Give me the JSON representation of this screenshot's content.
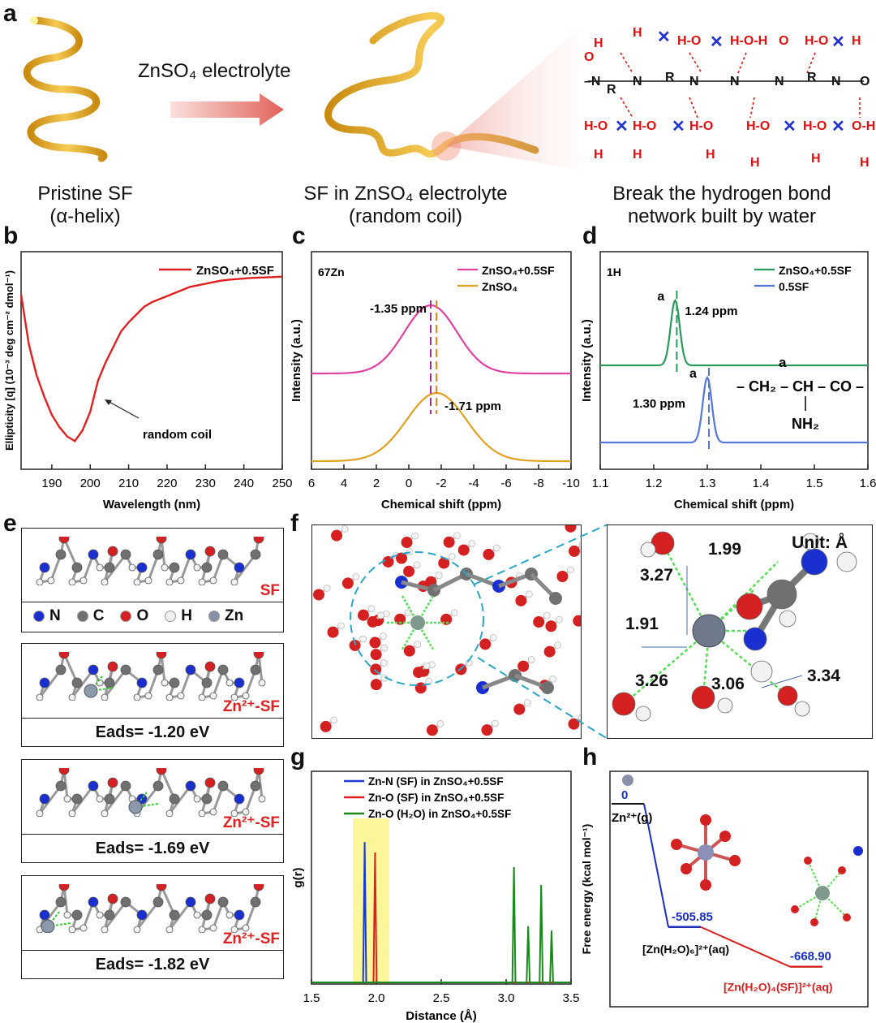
{
  "panel_a": {
    "label": "a",
    "arrow_text": "ZnSO₄ electrolyte",
    "caption1_line1": "Pristine SF",
    "caption1_line2": "(α-helix)",
    "caption2_line1": "SF in ZnSO₄ electrolyte",
    "caption2_line2": "(random coil)",
    "caption3_line1": "Break the hydrogen bond",
    "caption3_line2": "network built by water",
    "colors": {
      "helix": "#f2b531",
      "arrow": "#e8736a",
      "hbond": "#d11",
      "cross": "#2233cc"
    }
  },
  "panel_b": {
    "label": "b",
    "annotation": "random coil",
    "chart_data": {
      "type": "line",
      "xlabel": "Wavelength (nm)",
      "ylabel": "Ellipticity [q] (10⁻³ deg cm⁻² dmol⁻¹)",
      "xlim": [
        182,
        250
      ],
      "xticks": [
        190,
        200,
        210,
        220,
        230,
        240,
        250
      ],
      "series": [
        {
          "name": "ZnSO₄+0.5SF",
          "color": "#e02020",
          "x": [
            182,
            184,
            186,
            188,
            190,
            192,
            194,
            196,
            198,
            200,
            202,
            204,
            206,
            208,
            210,
            212,
            214,
            216,
            218,
            220,
            222,
            224,
            226,
            228,
            230,
            232,
            234,
            236,
            238,
            240,
            242,
            244,
            246,
            248,
            250
          ],
          "y": [
            -0.6,
            -2.2,
            -3.2,
            -3.9,
            -4.5,
            -4.9,
            -5.2,
            -5.35,
            -5.0,
            -4.4,
            -3.4,
            -2.8,
            -2.3,
            -1.8,
            -1.5,
            -1.25,
            -1.0,
            -0.85,
            -0.75,
            -0.65,
            -0.55,
            -0.45,
            -0.35,
            -0.3,
            -0.25,
            -0.2,
            -0.15,
            -0.12,
            -0.1,
            -0.08,
            -0.06,
            -0.05,
            -0.04,
            -0.03,
            -0.02
          ]
        }
      ]
    }
  },
  "panel_c": {
    "label": "c",
    "nucleus": "67Zn",
    "ann1": "-1.35 ppm",
    "ann2": "-1.71 ppm",
    "chart_data": {
      "type": "line",
      "xlabel": "Chemical shift (ppm)",
      "ylabel": "Intensity (a.u.)",
      "xlim": [
        6,
        -10
      ],
      "xticks": [
        6,
        4,
        2,
        0,
        -2,
        -4,
        -6,
        -8,
        -10
      ],
      "series": [
        {
          "name": "ZnSO₄+0.5SF",
          "color": "#e040a0",
          "peak": -1.35,
          "width": 2.3
        },
        {
          "name": "ZnSO₄",
          "color": "#e0a020",
          "peak": -1.71,
          "width": 2.6
        }
      ]
    }
  },
  "panel_d": {
    "label": "d",
    "nucleus": "1H",
    "ann1": "1.24 ppm",
    "ann2": "1.30 ppm",
    "peak_label": "a",
    "formula_left": "– CH₂ – CH – CO –",
    "formula_sub": "NH₂",
    "chart_data": {
      "type": "line",
      "xlabel": "Chemical shift (ppm)",
      "ylabel": "Intensity (a.u.)",
      "xlim": [
        1.1,
        1.6
      ],
      "xticks": [
        1.1,
        1.2,
        1.3,
        1.4,
        1.5,
        1.6
      ],
      "series": [
        {
          "name": "ZnSO₄+0.5SF",
          "color": "#2a9a5a",
          "peak": 1.24
        },
        {
          "name": "0.5SF",
          "color": "#5577dd",
          "peak": 1.3
        }
      ]
    }
  },
  "panel_e": {
    "label": "e",
    "sf_label": "SF",
    "zn_sf_label": "Zn²⁺-SF",
    "legend": [
      {
        "name": "N",
        "color": "#1a2fd0"
      },
      {
        "name": "C",
        "color": "#707070"
      },
      {
        "name": "O",
        "color": "#d42020"
      },
      {
        "name": "H",
        "color": "#f0f0f0"
      },
      {
        "name": "Zn",
        "color": "#8890a8"
      }
    ],
    "eads": [
      "Eads= -1.20 eV",
      "Eads= -1.69 eV",
      "Eads= -1.82 eV"
    ]
  },
  "panel_f": {
    "label": "f",
    "unit": "Unit: Å",
    "distances": [
      "1.99",
      "3.27",
      "1.91",
      "3.26",
      "3.06",
      "3.34"
    ]
  },
  "panel_g": {
    "label": "g",
    "chart_data": {
      "type": "line",
      "xlabel": "Distance (Å)",
      "ylabel": "g(r)",
      "xlim": [
        1.5,
        3.5
      ],
      "xticks": [
        1.5,
        2.0,
        2.5,
        3.0,
        3.5
      ],
      "highlight": [
        1.82,
        2.1
      ],
      "series": [
        {
          "name": "Zn-N (SF) in ZnSO₄+0.5SF",
          "color": "#1a3ad0",
          "peaks": [
            [
              1.91,
              0.95
            ]
          ]
        },
        {
          "name": "Zn-O (SF) in ZnSO₄+0.5SF",
          "color": "#e02020",
          "peaks": [
            [
              1.99,
              0.88
            ]
          ]
        },
        {
          "name": "Zn-O (H₂O) in ZnSO₄+0.5SF",
          "color": "#1a8a1a",
          "peaks": [
            [
              3.06,
              0.78
            ],
            [
              3.17,
              0.38
            ],
            [
              3.27,
              0.66
            ],
            [
              3.35,
              0.35
            ]
          ]
        }
      ]
    }
  },
  "panel_h": {
    "label": "h",
    "ylabel": "Free energy (kcal mol⁻¹)",
    "state0_value": "0",
    "state0_label": "Zn²⁺(g)",
    "state1_value": "-505.85",
    "state1_label": "[Zn(H₂O)₆]²⁺(aq)",
    "state2_value": "-668.90",
    "state2_label": "[Zn(H₂O)₄(SF)]²⁺(aq)",
    "chart_data": {
      "type": "line",
      "values": [
        0,
        -505.85,
        -668.9
      ]
    }
  }
}
